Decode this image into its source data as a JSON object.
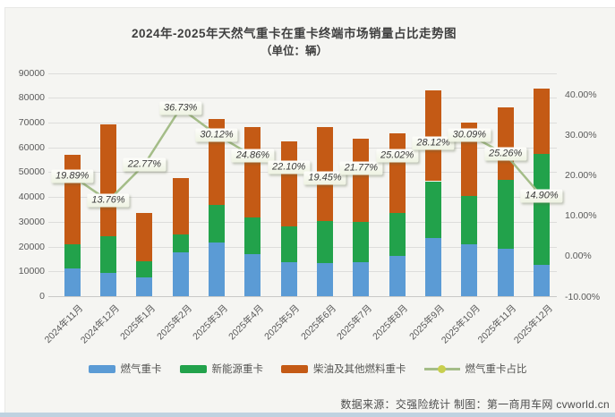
{
  "header": {
    "title": "2024年-2025年天然气重卡在重卡终端市场销量占比走势图",
    "subtitle": "（单位：辆）"
  },
  "footer": {
    "text": "数据来源：交强险统计 制图：第一商用车网 cvworld.cn"
  },
  "legend": {
    "items": [
      {
        "label": "燃气重卡",
        "type": "swatch",
        "color": "#5b9bd5"
      },
      {
        "label": "新能源重卡",
        "type": "swatch",
        "color": "#22a24b"
      },
      {
        "label": "柴油及其他燃料重卡",
        "type": "swatch",
        "color": "#c45a15"
      },
      {
        "label": "燃气重卡占比",
        "type": "line-dot",
        "color": "#a4bd88",
        "dot_color": "#c8cf4e"
      }
    ]
  },
  "chart_data": {
    "type": "bar",
    "subtype": "stacked-bars-with-percent-line",
    "title": "2024年-2025年天然气重卡在重卡终端市场销量占比走势图",
    "unit_note": "（单位：辆）",
    "categories": [
      "2024年11月",
      "2024年12月",
      "2025年1月",
      "2025年2月",
      "2025年3月",
      "2025年4月",
      "2025年5月",
      "2025年6月",
      "2025年7月",
      "2025年8月",
      "2025年9月",
      "2025年10月",
      "2025年11月",
      "2025年12月"
    ],
    "series": [
      {
        "name": "燃气重卡",
        "type": "bar",
        "color": "#5b9bd5",
        "values": [
          11300,
          9550,
          7650,
          17500,
          21500,
          16900,
          13800,
          13250,
          13850,
          16400,
          23350,
          21050,
          19200,
          12500
        ]
      },
      {
        "name": "新能源重卡",
        "type": "bar",
        "color": "#22a24b",
        "values": [
          9500,
          14600,
          6400,
          7300,
          15300,
          15000,
          14200,
          17150,
          16100,
          17300,
          23000,
          19400,
          27800,
          44900
        ]
      },
      {
        "name": "柴油及其他燃料重卡",
        "type": "bar",
        "color": "#c45a15",
        "values": [
          36200,
          45250,
          19450,
          22800,
          34700,
          36100,
          34500,
          37800,
          33650,
          31900,
          36650,
          29450,
          29000,
          26400
        ]
      }
    ],
    "line_series": {
      "name": "燃气重卡占比",
      "type": "line",
      "axis": "right",
      "color": "#a4bd88",
      "marker_color": "#c8cf4e",
      "values": [
        19.89,
        13.76,
        22.77,
        36.73,
        30.12,
        24.86,
        22.1,
        19.45,
        21.77,
        25.02,
        28.12,
        30.09,
        25.26,
        14.9
      ],
      "labels": [
        "19.89%",
        "13.76%",
        "22.77%",
        "36.73%",
        "30.12%",
        "24.86%",
        "22.10%",
        "19.45%",
        "21.77%",
        "25.02%",
        "28.12%",
        "30.09%",
        "25.26%",
        "14.90%"
      ]
    },
    "left_axis": {
      "min": 0,
      "max": 90000,
      "step": 10000,
      "ticks": [
        "0",
        "10000",
        "20000",
        "30000",
        "40000",
        "50000",
        "60000",
        "70000",
        "80000",
        "90000"
      ]
    },
    "right_axis": {
      "min": -10,
      "max": 40,
      "step": 10,
      "ticks": [
        "-10.00%",
        "0.00%",
        "10.00%",
        "20.00%",
        "30.00%",
        "40.00%"
      ]
    },
    "grid": true,
    "legend_position": "bottom"
  }
}
